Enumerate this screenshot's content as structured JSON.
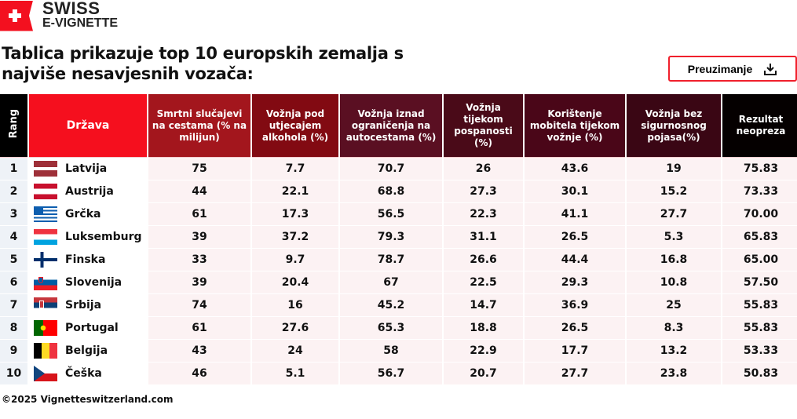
{
  "logo": {
    "line1": "SWISS",
    "line2": "E-VIGNETTE"
  },
  "title": "Tablica prikazuje top 10 europskih zemalja s najviše nesavjesnih vozača:",
  "download": {
    "label": "Preuzimanje",
    "icon": "download-icon"
  },
  "columns": [
    "Rang",
    "Država",
    "Smrtni slučajevi na cestama (% na milijun)",
    "Vožnja pod utjecajem alkohola (%)",
    "Vožnja iznad ograničenja na autocestama (%)",
    "Vožnja tijekom pospanosti (%)",
    "Korištenje mobitela tijekom vožnje (%)",
    "Vožnja bez sigurnosnog pojasa(%)",
    "Rezultat neopreza"
  ],
  "header_colors": [
    "#000000",
    "#f50f1e",
    "#a3161d",
    "#820a12",
    "#5a0f22",
    "#4a0a18",
    "#4a0618",
    "#3a0614",
    "#050000"
  ],
  "rows": [
    {
      "rank": "1",
      "country": "Latvija",
      "flag": "latvia",
      "v": [
        "75",
        "7.7",
        "70.7",
        "26",
        "43.6",
        "19",
        "75.83"
      ]
    },
    {
      "rank": "2",
      "country": "Austrija",
      "flag": "austria",
      "v": [
        "44",
        "22.1",
        "68.8",
        "27.3",
        "30.1",
        "15.2",
        "73.33"
      ]
    },
    {
      "rank": "3",
      "country": "Grčka",
      "flag": "greece",
      "v": [
        "61",
        "17.3",
        "56.5",
        "22.3",
        "41.1",
        "27.7",
        "70.00"
      ]
    },
    {
      "rank": "4",
      "country": "Luksemburg",
      "flag": "luxembourg",
      "v": [
        "39",
        "37.2",
        "79.3",
        "31.1",
        "26.5",
        "5.3",
        "65.83"
      ]
    },
    {
      "rank": "5",
      "country": "Finska",
      "flag": "finland",
      "v": [
        "33",
        "9.7",
        "78.7",
        "26.6",
        "44.4",
        "16.8",
        "65.00"
      ]
    },
    {
      "rank": "6",
      "country": "Slovenija",
      "flag": "slovenia",
      "v": [
        "39",
        "20.4",
        "67",
        "22.5",
        "29.3",
        "10.8",
        "57.50"
      ]
    },
    {
      "rank": "7",
      "country": "Srbija",
      "flag": "serbia",
      "v": [
        "74",
        "16",
        "45.2",
        "14.7",
        "36.9",
        "25",
        "55.83"
      ]
    },
    {
      "rank": "8",
      "country": "Portugal",
      "flag": "portugal",
      "v": [
        "61",
        "27.6",
        "65.3",
        "18.8",
        "26.5",
        "8.3",
        "55.83"
      ]
    },
    {
      "rank": "9",
      "country": "Belgija",
      "flag": "belgium",
      "v": [
        "43",
        "24",
        "58",
        "22.9",
        "17.7",
        "13.2",
        "53.33"
      ]
    },
    {
      "rank": "10",
      "country": "Češka",
      "flag": "czechia",
      "v": [
        "46",
        "5.1",
        "56.7",
        "20.7",
        "27.7",
        "23.8",
        "50.83"
      ]
    }
  ],
  "footer": "©2025 Vignetteswitzerland.com"
}
